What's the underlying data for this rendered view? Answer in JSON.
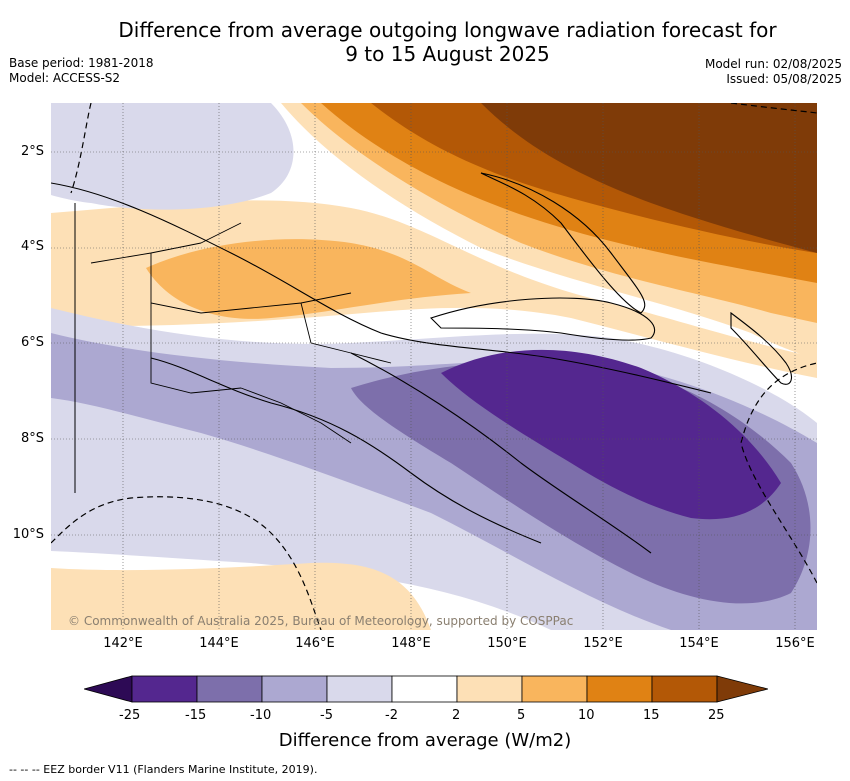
{
  "header": {
    "title_line1": "Difference from average outgoing longwave radiation forecast for",
    "title_line2": "9 to 15 August 2025",
    "base_period": "Base period: 1981-2018",
    "model": "Model: ACCESS-S2",
    "model_run": "Model run: 02/08/2025",
    "issued": "Issued: 05/08/2025"
  },
  "map": {
    "latitude_labels": [
      "2°S",
      "4°S",
      "6°S",
      "8°S",
      "10°S"
    ],
    "longitude_labels": [
      "142°E",
      "144°E",
      "146°E",
      "148°E",
      "150°E",
      "152°E",
      "154°E",
      "156°E"
    ],
    "credit": "© Commonwealth of Australia 2025, Bureau of Meteorology, supported by COSPPac"
  },
  "colorbar": {
    "tick_labels": [
      "-25",
      "-15",
      "-10",
      "-5",
      "-2",
      "2",
      "5",
      "10",
      "15",
      "25"
    ],
    "colors": [
      "#2d0a55",
      "#54278f",
      "#7d6fab",
      "#aca8d1",
      "#d9d9eb",
      "#ffffff",
      "#fde0b6",
      "#f9b55d",
      "#e08214",
      "#b35806",
      "#7f3b08"
    ],
    "title": "Difference from average (W/m2)"
  },
  "footnote": "--  --  -- EEZ border V11 (Flanders Marine Institute, 2019)."
}
